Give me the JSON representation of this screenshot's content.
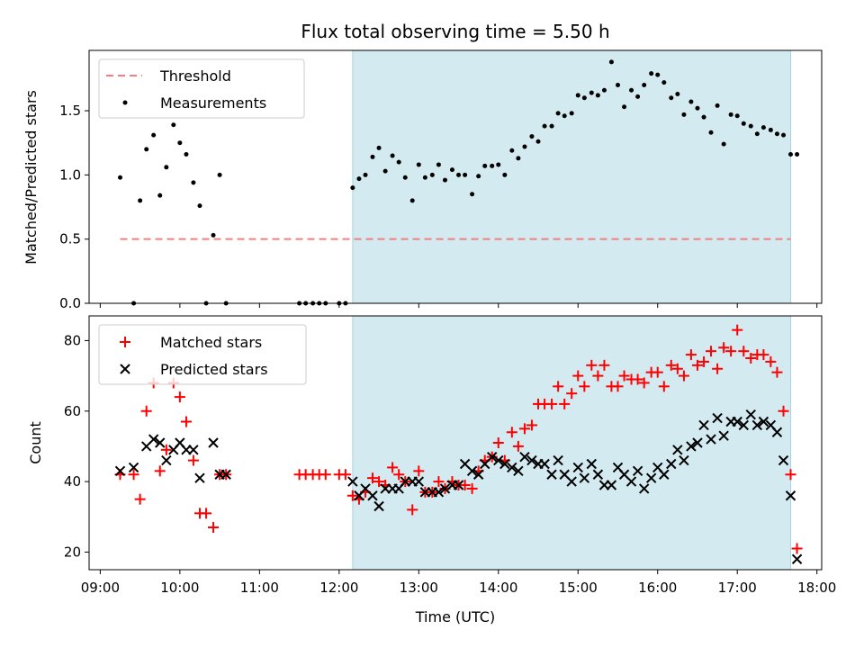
{
  "title": "Flux total observing time = 5.50 h",
  "x_axis_label": "Time (UTC)",
  "x_ticks": [
    "09:00",
    "10:00",
    "11:00",
    "12:00",
    "13:00",
    "14:00",
    "15:00",
    "16:00",
    "17:00",
    "18:00"
  ],
  "colors": {
    "shade": "#d3eaf1",
    "threshold": "#f08080",
    "measurements": "#000000",
    "matched": "#ff0000",
    "predicted": "#000000"
  },
  "chart_data": [
    {
      "type": "scatter",
      "ylabel": "Matched/Predicted stars",
      "xlim": [
        8.86,
        18.06
      ],
      "ylim": [
        0,
        1.97
      ],
      "yticks": [
        "0.0",
        "0.5",
        "1.0",
        "1.5"
      ],
      "shaded_region": [
        12.17,
        17.67
      ],
      "legend": {
        "placement": "top-left",
        "entries": [
          "Threshold",
          "Measurements"
        ]
      },
      "threshold": {
        "name": "Threshold",
        "y": 0.5,
        "x": [
          9.25,
          17.67
        ]
      },
      "series": [
        {
          "name": "Measurements",
          "points": [
            [
              9.25,
              0.98
            ],
            [
              9.42,
              0.0
            ],
            [
              9.5,
              0.8
            ],
            [
              9.58,
              1.2
            ],
            [
              9.67,
              1.31
            ],
            [
              9.75,
              0.84
            ],
            [
              9.83,
              1.06
            ],
            [
              9.92,
              1.39
            ],
            [
              10.0,
              1.25
            ],
            [
              10.08,
              1.16
            ],
            [
              10.17,
              0.94
            ],
            [
              10.25,
              0.76
            ],
            [
              10.33,
              0.0
            ],
            [
              10.42,
              0.53
            ],
            [
              10.5,
              1.0
            ],
            [
              10.58,
              0.0
            ],
            [
              11.5,
              0.0
            ],
            [
              11.58,
              0.0
            ],
            [
              11.67,
              0.0
            ],
            [
              11.75,
              0.0
            ],
            [
              11.83,
              0.0
            ],
            [
              12.0,
              0.0
            ],
            [
              12.08,
              0.0
            ],
            [
              12.17,
              0.9
            ],
            [
              12.25,
              0.97
            ],
            [
              12.33,
              1.0
            ],
            [
              12.42,
              1.14
            ],
            [
              12.5,
              1.21
            ],
            [
              12.58,
              1.03
            ],
            [
              12.67,
              1.15
            ],
            [
              12.75,
              1.1
            ],
            [
              12.83,
              0.98
            ],
            [
              12.92,
              0.8
            ],
            [
              13.0,
              1.08
            ],
            [
              13.08,
              0.98
            ],
            [
              13.17,
              1.0
            ],
            [
              13.25,
              1.08
            ],
            [
              13.33,
              0.96
            ],
            [
              13.42,
              1.04
            ],
            [
              13.5,
              1.0
            ],
            [
              13.58,
              1.0
            ],
            [
              13.67,
              0.85
            ],
            [
              13.75,
              0.99
            ],
            [
              13.83,
              1.07
            ],
            [
              13.92,
              1.07
            ],
            [
              14.0,
              1.08
            ],
            [
              14.08,
              1.0
            ],
            [
              14.17,
              1.19
            ],
            [
              14.25,
              1.13
            ],
            [
              14.33,
              1.22
            ],
            [
              14.42,
              1.3
            ],
            [
              14.5,
              1.26
            ],
            [
              14.58,
              1.38
            ],
            [
              14.67,
              1.38
            ],
            [
              14.75,
              1.48
            ],
            [
              14.83,
              1.46
            ],
            [
              14.92,
              1.48
            ],
            [
              15.0,
              1.62
            ],
            [
              15.08,
              1.6
            ],
            [
              15.17,
              1.64
            ],
            [
              15.25,
              1.62
            ],
            [
              15.33,
              1.66
            ],
            [
              15.42,
              1.88
            ],
            [
              15.5,
              1.7
            ],
            [
              15.58,
              1.53
            ],
            [
              15.67,
              1.66
            ],
            [
              15.75,
              1.61
            ],
            [
              15.83,
              1.7
            ],
            [
              15.92,
              1.79
            ],
            [
              16.0,
              1.78
            ],
            [
              16.08,
              1.72
            ],
            [
              16.17,
              1.6
            ],
            [
              16.25,
              1.63
            ],
            [
              16.33,
              1.47
            ],
            [
              16.42,
              1.57
            ],
            [
              16.5,
              1.52
            ],
            [
              16.58,
              1.45
            ],
            [
              16.67,
              1.33
            ],
            [
              16.75,
              1.54
            ],
            [
              16.83,
              1.24
            ],
            [
              16.92,
              1.47
            ],
            [
              17.0,
              1.46
            ],
            [
              17.08,
              1.4
            ],
            [
              17.17,
              1.38
            ],
            [
              17.25,
              1.32
            ],
            [
              17.33,
              1.37
            ],
            [
              17.42,
              1.35
            ],
            [
              17.5,
              1.32
            ],
            [
              17.58,
              1.31
            ],
            [
              17.67,
              1.16
            ],
            [
              17.75,
              1.16
            ]
          ]
        }
      ]
    },
    {
      "type": "scatter",
      "ylabel": "Count",
      "xlabel": "Time (UTC)",
      "xlim": [
        8.86,
        18.06
      ],
      "ylim": [
        15,
        87
      ],
      "yticks": [
        "20",
        "40",
        "60",
        "80"
      ],
      "shaded_region": [
        12.17,
        17.67
      ],
      "legend": {
        "placement": "top-left",
        "entries": [
          "Matched stars",
          "Predicted stars"
        ]
      },
      "series": [
        {
          "name": "Matched stars",
          "marker": "plus",
          "points": [
            [
              9.25,
              42
            ],
            [
              9.42,
              42
            ],
            [
              9.5,
              35
            ],
            [
              9.58,
              60
            ],
            [
              9.67,
              68
            ],
            [
              9.75,
              43
            ],
            [
              9.83,
              49
            ],
            [
              9.92,
              68
            ],
            [
              10.0,
              64
            ],
            [
              10.08,
              57
            ],
            [
              10.17,
              46
            ],
            [
              10.25,
              31
            ],
            [
              10.33,
              31
            ],
            [
              10.42,
              27
            ],
            [
              10.5,
              42
            ],
            [
              10.58,
              42
            ],
            [
              11.5,
              42
            ],
            [
              11.58,
              42
            ],
            [
              11.67,
              42
            ],
            [
              11.75,
              42
            ],
            [
              11.83,
              42
            ],
            [
              12.0,
              42
            ],
            [
              12.08,
              42
            ],
            [
              12.17,
              36
            ],
            [
              12.25,
              35
            ],
            [
              12.33,
              37
            ],
            [
              12.42,
              41
            ],
            [
              12.5,
              40
            ],
            [
              12.58,
              39
            ],
            [
              12.67,
              44
            ],
            [
              12.75,
              42
            ],
            [
              12.83,
              40
            ],
            [
              12.92,
              32
            ],
            [
              13.0,
              43
            ],
            [
              13.08,
              37
            ],
            [
              13.17,
              37
            ],
            [
              13.25,
              40
            ],
            [
              13.33,
              38
            ],
            [
              13.42,
              40
            ],
            [
              13.5,
              39
            ],
            [
              13.58,
              39
            ],
            [
              13.67,
              38
            ],
            [
              13.75,
              43
            ],
            [
              13.83,
              46
            ],
            [
              13.92,
              47
            ],
            [
              14.0,
              51
            ],
            [
              14.08,
              46
            ],
            [
              14.17,
              54
            ],
            [
              14.25,
              50
            ],
            [
              14.33,
              55
            ],
            [
              14.42,
              56
            ],
            [
              14.5,
              62
            ],
            [
              14.58,
              62
            ],
            [
              14.67,
              62
            ],
            [
              14.75,
              67
            ],
            [
              14.83,
              62
            ],
            [
              14.92,
              65
            ],
            [
              15.0,
              70
            ],
            [
              15.08,
              67
            ],
            [
              15.17,
              73
            ],
            [
              15.25,
              70
            ],
            [
              15.33,
              73
            ],
            [
              15.42,
              67
            ],
            [
              15.5,
              67
            ],
            [
              15.58,
              70
            ],
            [
              15.67,
              69
            ],
            [
              15.75,
              69
            ],
            [
              15.83,
              68
            ],
            [
              15.92,
              71
            ],
            [
              16.0,
              71
            ],
            [
              16.08,
              67
            ],
            [
              16.17,
              73
            ],
            [
              16.25,
              72
            ],
            [
              16.33,
              70
            ],
            [
              16.42,
              76
            ],
            [
              16.5,
              73
            ],
            [
              16.58,
              74
            ],
            [
              16.67,
              77
            ],
            [
              16.75,
              72
            ],
            [
              16.83,
              78
            ],
            [
              16.92,
              77
            ],
            [
              17.0,
              83
            ],
            [
              17.08,
              77
            ],
            [
              17.17,
              75
            ],
            [
              17.25,
              76
            ],
            [
              17.33,
              76
            ],
            [
              17.42,
              74
            ],
            [
              17.5,
              71
            ],
            [
              17.58,
              60
            ],
            [
              17.67,
              42
            ],
            [
              17.75,
              21
            ]
          ]
        },
        {
          "name": "Predicted stars",
          "marker": "x",
          "points": [
            [
              9.25,
              43
            ],
            [
              9.42,
              44
            ],
            [
              9.58,
              50
            ],
            [
              9.67,
              52
            ],
            [
              9.75,
              51
            ],
            [
              9.83,
              46
            ],
            [
              9.92,
              49
            ],
            [
              10.0,
              51
            ],
            [
              10.08,
              49
            ],
            [
              10.17,
              49
            ],
            [
              10.25,
              41
            ],
            [
              10.42,
              51
            ],
            [
              10.5,
              42
            ],
            [
              10.58,
              42
            ],
            [
              12.17,
              40
            ],
            [
              12.25,
              36
            ],
            [
              12.33,
              38
            ],
            [
              12.42,
              36
            ],
            [
              12.5,
              33
            ],
            [
              12.58,
              38
            ],
            [
              12.67,
              38
            ],
            [
              12.75,
              38
            ],
            [
              12.83,
              40
            ],
            [
              12.92,
              40
            ],
            [
              13.0,
              40
            ],
            [
              13.08,
              37
            ],
            [
              13.17,
              37
            ],
            [
              13.25,
              37
            ],
            [
              13.33,
              38
            ],
            [
              13.42,
              39
            ],
            [
              13.5,
              39
            ],
            [
              13.58,
              45
            ],
            [
              13.67,
              43
            ],
            [
              13.75,
              42
            ],
            [
              13.83,
              45
            ],
            [
              13.92,
              47
            ],
            [
              14.0,
              46
            ],
            [
              14.08,
              45
            ],
            [
              14.17,
              44
            ],
            [
              14.25,
              43
            ],
            [
              14.33,
              47
            ],
            [
              14.42,
              46
            ],
            [
              14.5,
              45
            ],
            [
              14.58,
              45
            ],
            [
              14.67,
              42
            ],
            [
              14.75,
              46
            ],
            [
              14.83,
              42
            ],
            [
              14.92,
              40
            ],
            [
              15.0,
              44
            ],
            [
              15.08,
              41
            ],
            [
              15.17,
              45
            ],
            [
              15.25,
              42
            ],
            [
              15.33,
              39
            ],
            [
              15.42,
              39
            ],
            [
              15.5,
              44
            ],
            [
              15.58,
              42
            ],
            [
              15.67,
              40
            ],
            [
              15.75,
              43
            ],
            [
              15.83,
              38
            ],
            [
              15.92,
              41
            ],
            [
              16.0,
              44
            ],
            [
              16.08,
              42
            ],
            [
              16.17,
              45
            ],
            [
              16.25,
              49
            ],
            [
              16.33,
              46
            ],
            [
              16.42,
              50
            ],
            [
              16.5,
              51
            ],
            [
              16.58,
              56
            ],
            [
              16.67,
              52
            ],
            [
              16.75,
              58
            ],
            [
              16.83,
              53
            ],
            [
              16.92,
              57
            ],
            [
              17.0,
              57
            ],
            [
              17.08,
              56
            ],
            [
              17.17,
              59
            ],
            [
              17.25,
              56
            ],
            [
              17.33,
              57
            ],
            [
              17.42,
              56
            ],
            [
              17.5,
              54
            ],
            [
              17.58,
              46
            ],
            [
              17.67,
              36
            ],
            [
              17.75,
              18
            ]
          ]
        }
      ]
    }
  ]
}
